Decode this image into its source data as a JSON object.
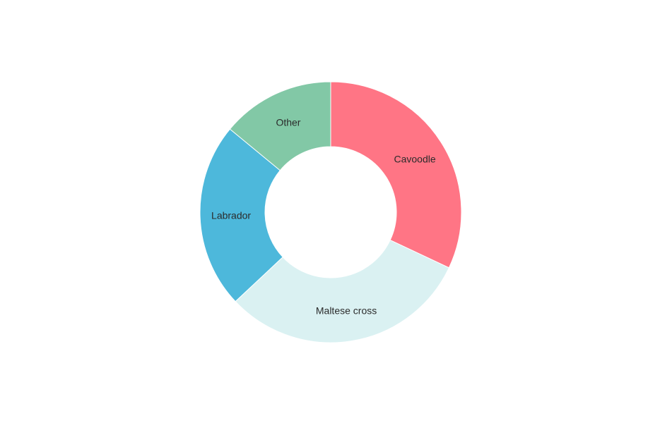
{
  "chart_data": {
    "type": "pie",
    "variant": "donut",
    "slices": [
      {
        "label": "Cavoodle",
        "value": 32,
        "color": "#ff7585"
      },
      {
        "label": "Maltese cross",
        "value": 31,
        "color": "#daf1f2"
      },
      {
        "label": "Labrador",
        "value": 23,
        "color": "#4db8db"
      },
      {
        "label": "Other",
        "value": 14,
        "color": "#82c8a6"
      }
    ],
    "labels_on_slices": true,
    "legend": "none"
  }
}
